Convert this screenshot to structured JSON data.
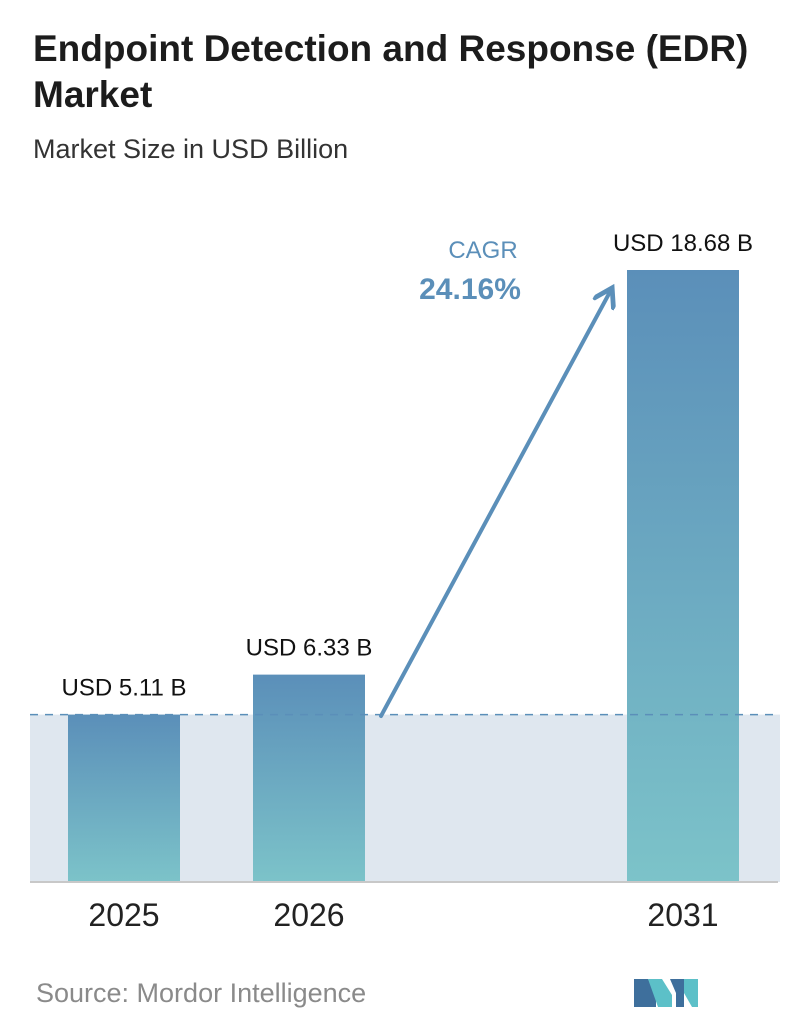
{
  "title": "Endpoint Detection and Response (EDR) Market",
  "subtitle": "Market Size in USD Billion",
  "source": "Source:  Mordor Intelligence",
  "cagr": {
    "label": "CAGR",
    "value": "24.16%"
  },
  "colors": {
    "bar_top": "#5b8fb9",
    "bar_bottom": "#7cc3c9",
    "band": "#dfe7ef",
    "dashed_line": "#5b8fb9",
    "arrow": "#5b8fb9",
    "cagr_text": "#5b8fb9",
    "logo_dark": "#3e6f9c",
    "logo_light": "#5cc0c8"
  },
  "chart_data": {
    "type": "bar",
    "categories": [
      "2025",
      "2026",
      "2031"
    ],
    "values": [
      5.11,
      6.33,
      18.68
    ],
    "value_labels": [
      "USD 5.11 B",
      "USD 6.33 B",
      "USD 18.68 B"
    ],
    "title": "Endpoint Detection and Response (EDR) Market",
    "subtitle": "Market Size in USD Billion",
    "ylim": [
      0,
      18.68
    ],
    "grid": false,
    "legend": "none",
    "reference_line": 5.11
  }
}
